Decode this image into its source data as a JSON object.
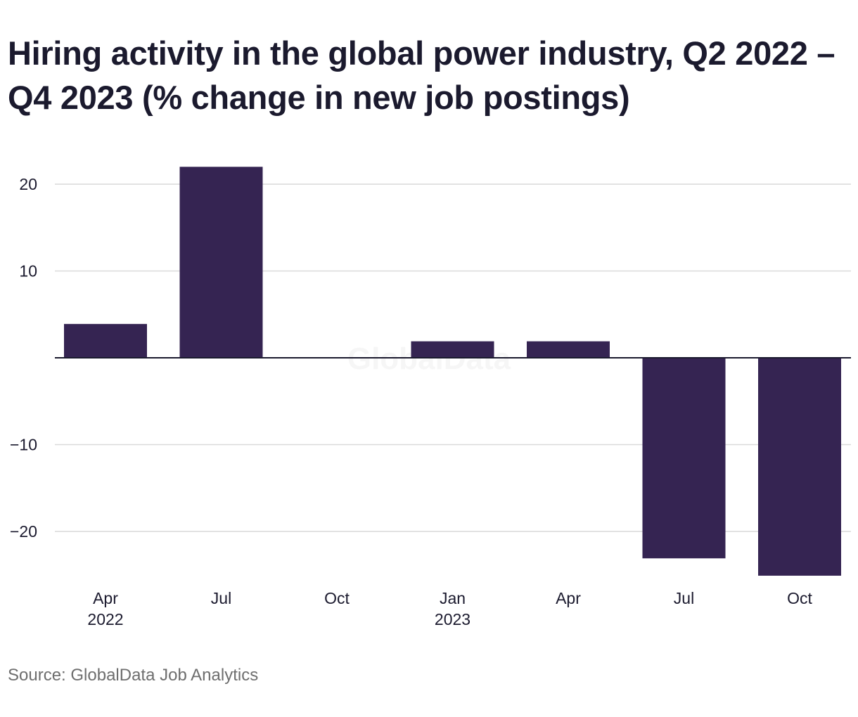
{
  "header": {
    "title": "Hiring activity in the global power industry, Q2 2022 – Q4 2023 (% change in new job postings)"
  },
  "footer": {
    "source": "Source: GlobalData Job Analytics"
  },
  "watermark": "GlobalData",
  "colors": {
    "bar": "#352452",
    "grid": "#d9d9d9",
    "zero_line": "#1b1a2e",
    "text": "#1b1a2e",
    "source_text": "#6e6e6e"
  },
  "chart_data": {
    "type": "bar",
    "title": "Hiring activity in the global power industry, Q2 2022 – Q4 2023 (% change in new job postings)",
    "categories": [
      "Q2 2022",
      "Q3 2022",
      "Q4 2022",
      "Q1 2023",
      "Q2 2023",
      "Q3 2023",
      "Q4 2023"
    ],
    "x_tick_labels": [
      {
        "month": "Apr",
        "year": "2022"
      },
      {
        "month": "Jul",
        "year": ""
      },
      {
        "month": "Oct",
        "year": ""
      },
      {
        "month": "Jan",
        "year": "2023"
      },
      {
        "month": "Apr",
        "year": ""
      },
      {
        "month": "Jul",
        "year": ""
      },
      {
        "month": "Oct",
        "year": ""
      }
    ],
    "values": [
      3.9,
      22.0,
      0,
      1.9,
      1.9,
      -23.1,
      -25.1
    ],
    "y_ticks": [
      20,
      10,
      -10,
      -20
    ],
    "y_tick_labels": [
      "20",
      "10",
      "−10",
      "−20"
    ],
    "ylim": [
      -26,
      23
    ],
    "xlabel": "",
    "ylabel": "",
    "grid": true,
    "legend": "none"
  }
}
